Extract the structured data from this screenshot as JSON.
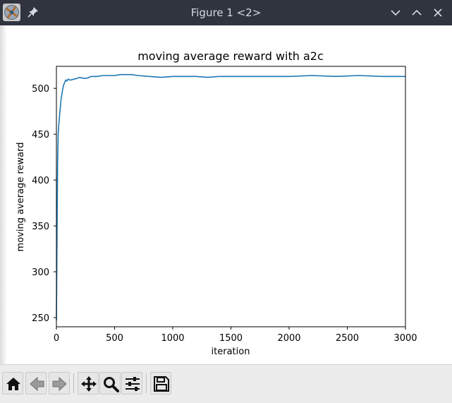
{
  "window": {
    "title": "Figure 1 <2>",
    "icons": [
      "app-icon",
      "pin-icon",
      "minimize-chevron-down-icon",
      "maximize-chevron-up-icon",
      "close-icon"
    ]
  },
  "toolbar": {
    "buttons": [
      {
        "name": "home-button",
        "icon": "home-icon"
      },
      {
        "name": "back-button",
        "icon": "left-arrow-icon"
      },
      {
        "name": "forward-button",
        "icon": "right-arrow-icon"
      },
      {
        "name": "pan-button",
        "icon": "move-arrows-icon"
      },
      {
        "name": "zoom-button",
        "icon": "magnifier-icon"
      },
      {
        "name": "configure-subplots-button",
        "icon": "sliders-icon"
      },
      {
        "name": "save-button",
        "icon": "floppy-disk-icon"
      }
    ]
  },
  "chart_data": {
    "type": "line",
    "title": "moving average reward with a2c",
    "xlabel": "iteration",
    "ylabel": "moving average reward",
    "xlim": [
      0,
      3000
    ],
    "ylim": [
      240,
      524
    ],
    "xticks": [
      0,
      500,
      1000,
      1500,
      2000,
      2500,
      3000
    ],
    "yticks": [
      250,
      300,
      350,
      400,
      450,
      500
    ],
    "grid": false,
    "color": "#1f77b4",
    "series": [
      {
        "x": [
          0,
          5,
          10,
          15,
          20,
          30,
          40,
          50,
          60,
          70,
          80,
          90,
          100,
          120,
          150,
          180,
          200,
          230,
          260,
          300,
          350,
          400,
          450,
          500,
          550,
          600,
          650,
          700,
          800,
          900,
          1000,
          1100,
          1200,
          1300,
          1400,
          1500,
          1600,
          1800,
          2000,
          2200,
          2400,
          2600,
          2800,
          3000
        ],
        "y": [
          247,
          330,
          420,
          450,
          460,
          475,
          488,
          496,
          503,
          506,
          509,
          508,
          510,
          509,
          510,
          511,
          512,
          511,
          511,
          513,
          513,
          514,
          514,
          514,
          515,
          515,
          515,
          514,
          513,
          512,
          513,
          513,
          513,
          512,
          513,
          513,
          513,
          513,
          513,
          514,
          513,
          514,
          513,
          513
        ]
      }
    ]
  }
}
